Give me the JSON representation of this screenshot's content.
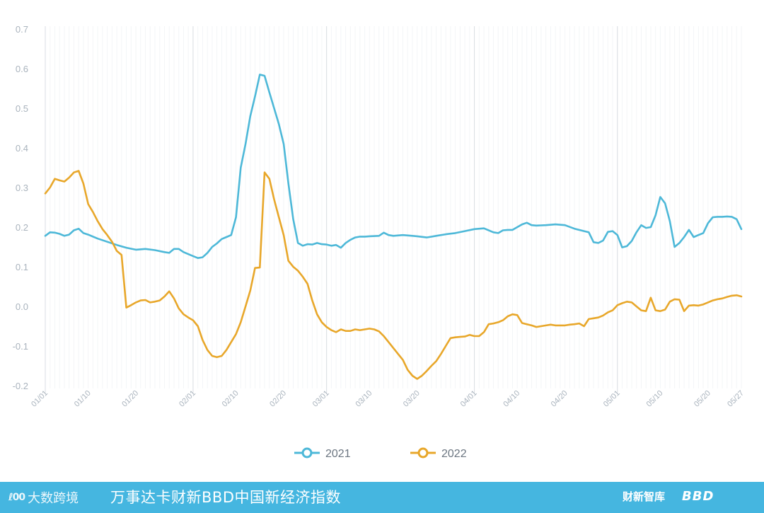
{
  "chart_data": {
    "type": "line",
    "title": "",
    "xlabel": "",
    "ylabel": "",
    "ylim": [
      -0.2,
      0.7
    ],
    "yticks": [
      "0.7",
      "0.6",
      "0.5",
      "0.4",
      "0.3",
      "0.2",
      "0.1",
      "0.0",
      "-0.1",
      "-0.2"
    ],
    "xticks": [
      "01/01",
      "01/10",
      "01/20",
      "02/01",
      "02/10",
      "02/20",
      "03/01",
      "03/10",
      "03/20",
      "04/01",
      "04/10",
      "04/20",
      "05/01",
      "05/10",
      "05/20",
      "05/27"
    ],
    "grid": "vertical",
    "legend_position": "bottom-center",
    "series": [
      {
        "name": "2021",
        "color": "#4db8d8",
        "points": [
          [
            "01/01",
            0.178
          ],
          [
            "01/02",
            0.187
          ],
          [
            "01/03",
            0.186
          ],
          [
            "01/04",
            0.183
          ],
          [
            "01/05",
            0.178
          ],
          [
            "01/06",
            0.181
          ],
          [
            "01/07",
            0.192
          ],
          [
            "01/08",
            0.196
          ],
          [
            "01/09",
            0.185
          ],
          [
            "01/10",
            0.181
          ],
          [
            "01/12",
            0.171
          ],
          [
            "01/14",
            0.163
          ],
          [
            "01/16",
            0.155
          ],
          [
            "01/18",
            0.148
          ],
          [
            "01/20",
            0.143
          ],
          [
            "01/22",
            0.145
          ],
          [
            "01/24",
            0.142
          ],
          [
            "01/26",
            0.137
          ],
          [
            "01/27",
            0.135
          ],
          [
            "01/28",
            0.145
          ],
          [
            "01/29",
            0.145
          ],
          [
            "01/30",
            0.137
          ],
          [
            "02/01",
            0.127
          ],
          [
            "02/02",
            0.122
          ],
          [
            "02/03",
            0.124
          ],
          [
            "02/04",
            0.135
          ],
          [
            "02/05",
            0.15
          ],
          [
            "02/06",
            0.159
          ],
          [
            "02/07",
            0.17
          ],
          [
            "02/08",
            0.175
          ],
          [
            "02/09",
            0.18
          ],
          [
            "02/10",
            0.225
          ],
          [
            "02/11",
            0.35
          ],
          [
            "02/12",
            0.41
          ],
          [
            "02/13",
            0.48
          ],
          [
            "02/14",
            0.53
          ],
          [
            "02/15",
            0.585
          ],
          [
            "02/16",
            0.582
          ],
          [
            "02/17",
            0.54
          ],
          [
            "02/18",
            0.5
          ],
          [
            "02/19",
            0.46
          ],
          [
            "02/20",
            0.41
          ],
          [
            "02/21",
            0.31
          ],
          [
            "02/22",
            0.22
          ],
          [
            "02/23",
            0.16
          ],
          [
            "02/24",
            0.153
          ],
          [
            "02/25",
            0.157
          ],
          [
            "02/26",
            0.156
          ],
          [
            "02/27",
            0.16
          ],
          [
            "02/28",
            0.157
          ],
          [
            "03/01",
            0.156
          ],
          [
            "03/02",
            0.153
          ],
          [
            "03/03",
            0.155
          ],
          [
            "03/04",
            0.148
          ],
          [
            "03/05",
            0.16
          ],
          [
            "03/06",
            0.168
          ],
          [
            "03/07",
            0.174
          ],
          [
            "03/08",
            0.176
          ],
          [
            "03/09",
            0.176
          ],
          [
            "03/10",
            0.177
          ],
          [
            "03/12",
            0.178
          ],
          [
            "03/13",
            0.186
          ],
          [
            "03/14",
            0.18
          ],
          [
            "03/15",
            0.178
          ],
          [
            "03/17",
            0.18
          ],
          [
            "03/19",
            0.178
          ],
          [
            "03/20",
            0.177
          ],
          [
            "03/22",
            0.174
          ],
          [
            "03/24",
            0.178
          ],
          [
            "03/26",
            0.182
          ],
          [
            "03/28",
            0.185
          ],
          [
            "03/30",
            0.19
          ],
          [
            "04/01",
            0.195
          ],
          [
            "04/03",
            0.197
          ],
          [
            "04/05",
            0.187
          ],
          [
            "04/06",
            0.185
          ],
          [
            "04/07",
            0.192
          ],
          [
            "04/08",
            0.193
          ],
          [
            "04/09",
            0.193
          ],
          [
            "04/10",
            0.2
          ],
          [
            "04/11",
            0.207
          ],
          [
            "04/12",
            0.211
          ],
          [
            "04/13",
            0.205
          ],
          [
            "04/14",
            0.204
          ],
          [
            "04/16",
            0.205
          ],
          [
            "04/18",
            0.207
          ],
          [
            "04/20",
            0.205
          ],
          [
            "04/22",
            0.196
          ],
          [
            "04/24",
            0.19
          ],
          [
            "04/25",
            0.187
          ],
          [
            "04/26",
            0.162
          ],
          [
            "04/27",
            0.16
          ],
          [
            "04/28",
            0.166
          ],
          [
            "04/29",
            0.188
          ],
          [
            "04/30",
            0.19
          ],
          [
            "05/01",
            0.18
          ],
          [
            "05/02",
            0.149
          ],
          [
            "05/03",
            0.152
          ],
          [
            "05/04",
            0.165
          ],
          [
            "05/05",
            0.187
          ],
          [
            "05/06",
            0.205
          ],
          [
            "05/07",
            0.198
          ],
          [
            "05/08",
            0.2
          ],
          [
            "05/09",
            0.23
          ],
          [
            "05/10",
            0.276
          ],
          [
            "05/11",
            0.26
          ],
          [
            "05/12",
            0.215
          ],
          [
            "05/13",
            0.15
          ],
          [
            "05/14",
            0.16
          ],
          [
            "05/15",
            0.175
          ],
          [
            "05/16",
            0.193
          ],
          [
            "05/17",
            0.175
          ],
          [
            "05/18",
            0.18
          ],
          [
            "05/19",
            0.185
          ],
          [
            "05/20",
            0.21
          ],
          [
            "05/21",
            0.225
          ],
          [
            "05/22",
            0.226
          ],
          [
            "05/23",
            0.226
          ],
          [
            "05/24",
            0.227
          ],
          [
            "05/25",
            0.226
          ],
          [
            "05/26",
            0.22
          ],
          [
            "05/27",
            0.195
          ]
        ]
      },
      {
        "name": "2022",
        "color": "#e8a72a",
        "points": [
          [
            "01/01",
            0.285
          ],
          [
            "01/02",
            0.3
          ],
          [
            "01/03",
            0.322
          ],
          [
            "01/04",
            0.318
          ],
          [
            "01/05",
            0.315
          ],
          [
            "01/06",
            0.325
          ],
          [
            "01/07",
            0.338
          ],
          [
            "01/08",
            0.342
          ],
          [
            "01/09",
            0.31
          ],
          [
            "01/10",
            0.258
          ],
          [
            "01/11",
            0.238
          ],
          [
            "01/12",
            0.215
          ],
          [
            "01/13",
            0.195
          ],
          [
            "01/14",
            0.18
          ],
          [
            "01/15",
            0.163
          ],
          [
            "01/16",
            0.14
          ],
          [
            "01/17",
            0.13
          ],
          [
            "01/18",
            -0.003
          ],
          [
            "01/19",
            0.003
          ],
          [
            "01/20",
            0.01
          ],
          [
            "01/21",
            0.015
          ],
          [
            "01/22",
            0.016
          ],
          [
            "01/23",
            0.01
          ],
          [
            "01/24",
            0.012
          ],
          [
            "01/25",
            0.015
          ],
          [
            "01/26",
            0.025
          ],
          [
            "01/27",
            0.038
          ],
          [
            "01/28",
            0.02
          ],
          [
            "01/29",
            -0.005
          ],
          [
            "01/30",
            -0.02
          ],
          [
            "01/31",
            -0.028
          ],
          [
            "02/01",
            -0.035
          ],
          [
            "02/02",
            -0.05
          ],
          [
            "02/03",
            -0.085
          ],
          [
            "02/04",
            -0.11
          ],
          [
            "02/05",
            -0.125
          ],
          [
            "02/06",
            -0.128
          ],
          [
            "02/07",
            -0.125
          ],
          [
            "02/08",
            -0.11
          ],
          [
            "02/09",
            -0.09
          ],
          [
            "02/10",
            -0.07
          ],
          [
            "02/11",
            -0.04
          ],
          [
            "02/12",
            0.0
          ],
          [
            "02/13",
            0.04
          ],
          [
            "02/14",
            0.097
          ],
          [
            "02/15",
            0.098
          ],
          [
            "02/16",
            0.338
          ],
          [
            "02/17",
            0.322
          ],
          [
            "02/18",
            0.27
          ],
          [
            "02/19",
            0.225
          ],
          [
            "02/20",
            0.18
          ],
          [
            "02/21",
            0.115
          ],
          [
            "02/22",
            0.1
          ],
          [
            "02/23",
            0.09
          ],
          [
            "02/24",
            0.075
          ],
          [
            "02/25",
            0.057
          ],
          [
            "02/26",
            0.015
          ],
          [
            "02/27",
            -0.02
          ],
          [
            "02/28",
            -0.04
          ],
          [
            "03/01",
            -0.052
          ],
          [
            "03/02",
            -0.06
          ],
          [
            "03/03",
            -0.065
          ],
          [
            "03/04",
            -0.058
          ],
          [
            "03/05",
            -0.062
          ],
          [
            "03/06",
            -0.062
          ],
          [
            "03/07",
            -0.058
          ],
          [
            "03/08",
            -0.06
          ],
          [
            "03/09",
            -0.058
          ],
          [
            "03/10",
            -0.056
          ],
          [
            "03/11",
            -0.058
          ],
          [
            "03/12",
            -0.063
          ],
          [
            "03/13",
            -0.075
          ],
          [
            "03/14",
            -0.09
          ],
          [
            "03/15",
            -0.105
          ],
          [
            "03/16",
            -0.12
          ],
          [
            "03/17",
            -0.135
          ],
          [
            "03/18",
            -0.16
          ],
          [
            "03/19",
            -0.175
          ],
          [
            "03/20",
            -0.183
          ],
          [
            "03/21",
            -0.175
          ],
          [
            "03/22",
            -0.163
          ],
          [
            "03/23",
            -0.15
          ],
          [
            "03/24",
            -0.138
          ],
          [
            "03/25",
            -0.12
          ],
          [
            "03/26",
            -0.1
          ],
          [
            "03/27",
            -0.08
          ],
          [
            "03/28",
            -0.078
          ],
          [
            "03/29",
            -0.077
          ],
          [
            "03/30",
            -0.076
          ],
          [
            "03/31",
            -0.072
          ],
          [
            "04/01",
            -0.075
          ],
          [
            "04/02",
            -0.075
          ],
          [
            "04/03",
            -0.065
          ],
          [
            "04/04",
            -0.045
          ],
          [
            "04/05",
            -0.043
          ],
          [
            "04/06",
            -0.04
          ],
          [
            "04/07",
            -0.035
          ],
          [
            "04/08",
            -0.025
          ],
          [
            "04/09",
            -0.02
          ],
          [
            "04/10",
            -0.022
          ],
          [
            "04/11",
            -0.042
          ],
          [
            "04/12",
            -0.045
          ],
          [
            "04/13",
            -0.048
          ],
          [
            "04/14",
            -0.052
          ],
          [
            "04/15",
            -0.05
          ],
          [
            "04/16",
            -0.048
          ],
          [
            "04/17",
            -0.046
          ],
          [
            "04/18",
            -0.048
          ],
          [
            "04/19",
            -0.048
          ],
          [
            "04/20",
            -0.048
          ],
          [
            "04/21",
            -0.046
          ],
          [
            "04/22",
            -0.045
          ],
          [
            "04/23",
            -0.043
          ],
          [
            "04/24",
            -0.05
          ],
          [
            "04/25",
            -0.032
          ],
          [
            "04/26",
            -0.03
          ],
          [
            "04/27",
            -0.028
          ],
          [
            "04/28",
            -0.023
          ],
          [
            "04/29",
            -0.015
          ],
          [
            "04/30",
            -0.01
          ],
          [
            "05/01",
            0.003
          ],
          [
            "05/02",
            0.008
          ],
          [
            "05/03",
            0.012
          ],
          [
            "05/04",
            0.01
          ],
          [
            "05/05",
            0.0
          ],
          [
            "05/06",
            -0.01
          ],
          [
            "05/07",
            -0.012
          ],
          [
            "05/08",
            0.022
          ],
          [
            "05/09",
            -0.01
          ],
          [
            "05/10",
            -0.012
          ],
          [
            "05/11",
            -0.008
          ],
          [
            "05/12",
            0.012
          ],
          [
            "05/13",
            0.018
          ],
          [
            "05/14",
            0.017
          ],
          [
            "05/15",
            -0.012
          ],
          [
            "05/16",
            0.002
          ],
          [
            "05/17",
            0.003
          ],
          [
            "05/18",
            0.002
          ],
          [
            "05/19",
            0.005
          ],
          [
            "05/20",
            0.01
          ],
          [
            "05/21",
            0.015
          ],
          [
            "05/22",
            0.018
          ],
          [
            "05/23",
            0.02
          ],
          [
            "05/24",
            0.024
          ],
          [
            "05/25",
            0.027
          ],
          [
            "05/26",
            0.028
          ],
          [
            "05/27",
            0.025
          ]
        ]
      }
    ]
  },
  "legend": [
    {
      "label": "2021",
      "color": "#4db8d8"
    },
    {
      "label": "2022",
      "color": "#e8a72a"
    }
  ],
  "footer": {
    "background": "#45b6e0",
    "logo_mark": "ℓ00",
    "logo_text": "大数跨境",
    "title": "万事达卡财新BBD中国新经济指数",
    "brand1": "财新智库",
    "brand2": "BBD"
  }
}
